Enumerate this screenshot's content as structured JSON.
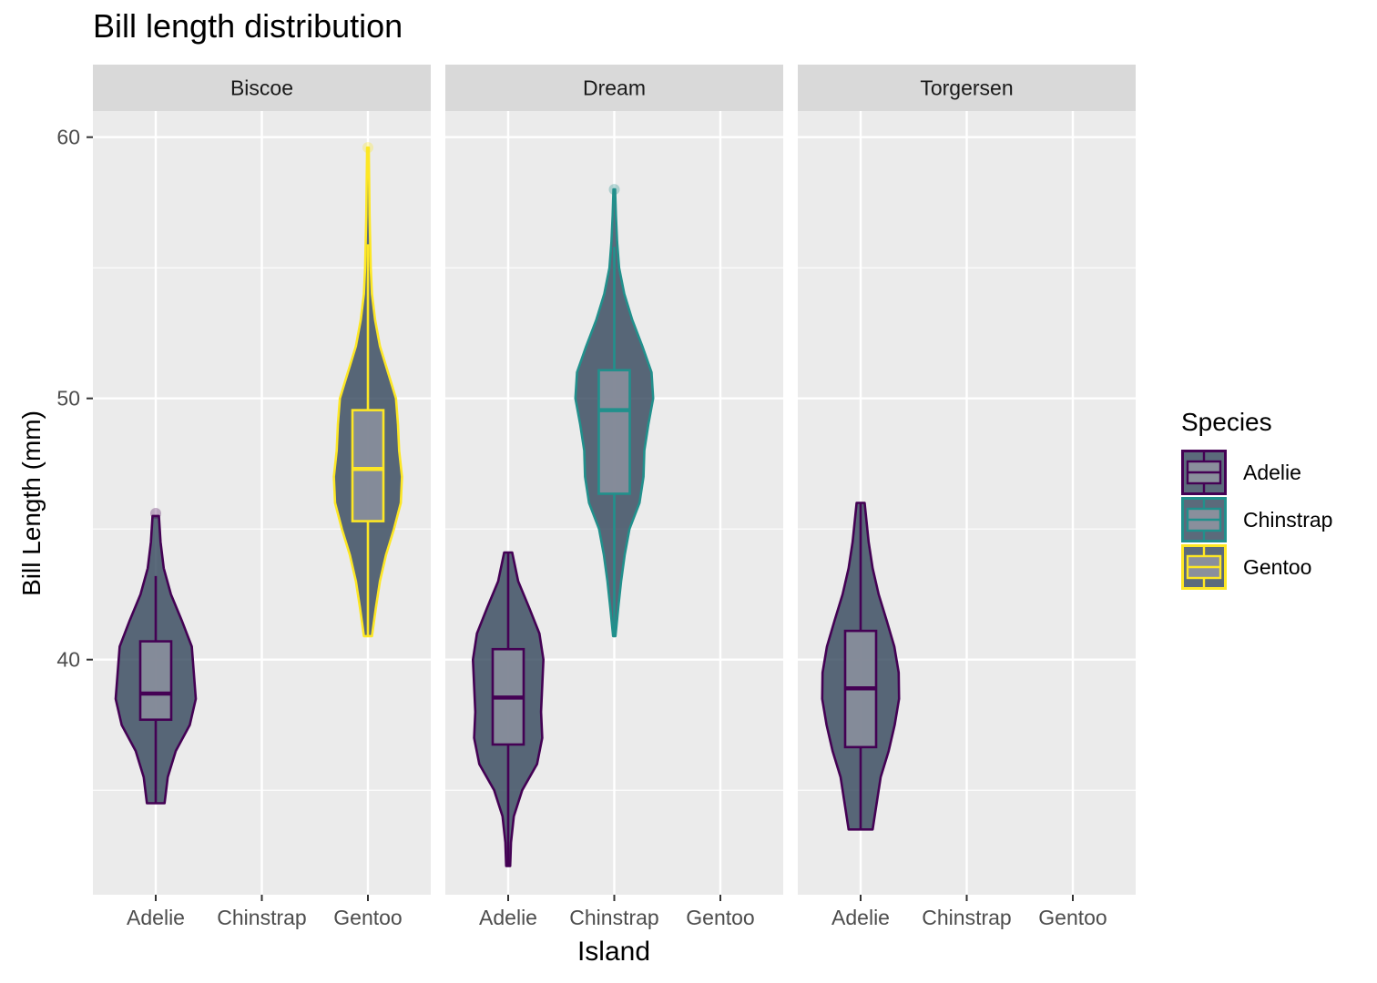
{
  "chart_data": {
    "type": "violin",
    "title": "Bill length distribution",
    "xlabel": "Island",
    "ylabel": "Bill Length (mm)",
    "ylim": [
      31,
      61
    ],
    "yticks": [
      40,
      50,
      60
    ],
    "grid": true,
    "legend_position": "right",
    "legend": {
      "title": "Species",
      "items": [
        {
          "label": "Adelie",
          "color": "#440154"
        },
        {
          "label": "Chinstrap",
          "color": "#21908C"
        },
        {
          "label": "Gentoo",
          "color": "#FDE725"
        }
      ]
    },
    "categories": [
      "Adelie",
      "Chinstrap",
      "Gentoo"
    ],
    "fill_color": "#2d4056",
    "facets": [
      {
        "label": "Biscoe",
        "groups": [
          {
            "species": "Adelie",
            "q1": 37.7,
            "median": 38.7,
            "q3": 40.7,
            "whisker_low": 34.5,
            "whisker_high": 43.2,
            "outliers": [
              45.6
            ],
            "density": [
              [
                34.5,
                0.22
              ],
              [
                35.5,
                0.3
              ],
              [
                36.5,
                0.5
              ],
              [
                37.5,
                0.85
              ],
              [
                38.5,
                1.0
              ],
              [
                39.5,
                0.95
              ],
              [
                40.5,
                0.9
              ],
              [
                41.5,
                0.65
              ],
              [
                42.5,
                0.38
              ],
              [
                43.5,
                0.2
              ],
              [
                44.5,
                0.12
              ],
              [
                45.5,
                0.08
              ]
            ]
          },
          {
            "species": "Gentoo",
            "q1": 45.3,
            "median": 47.3,
            "q3": 49.55,
            "whisker_low": 40.9,
            "whisker_high": 55.9,
            "outliers": [
              59.6
            ],
            "density": [
              [
                40.9,
                0.1
              ],
              [
                42,
                0.2
              ],
              [
                43,
                0.3
              ],
              [
                44,
                0.45
              ],
              [
                45,
                0.65
              ],
              [
                46,
                0.82
              ],
              [
                47,
                0.85
              ],
              [
                48,
                0.78
              ],
              [
                49,
                0.75
              ],
              [
                50,
                0.7
              ],
              [
                51,
                0.5
              ],
              [
                52,
                0.3
              ],
              [
                53,
                0.18
              ],
              [
                54,
                0.1
              ],
              [
                55,
                0.07
              ],
              [
                57,
                0.04
              ],
              [
                59.6,
                0.02
              ]
            ]
          }
        ]
      },
      {
        "label": "Dream",
        "groups": [
          {
            "species": "Adelie",
            "q1": 36.75,
            "median": 38.55,
            "q3": 40.4,
            "whisker_low": 32.1,
            "whisker_high": 44.1,
            "outliers": [],
            "density": [
              [
                32.1,
                0.05
              ],
              [
                33,
                0.07
              ],
              [
                34,
                0.14
              ],
              [
                35,
                0.35
              ],
              [
                36,
                0.72
              ],
              [
                37,
                0.85
              ],
              [
                38,
                0.82
              ],
              [
                39,
                0.85
              ],
              [
                40,
                0.88
              ],
              [
                41,
                0.78
              ],
              [
                42,
                0.52
              ],
              [
                43,
                0.25
              ],
              [
                44.1,
                0.1
              ]
            ]
          },
          {
            "species": "Chinstrap",
            "q1": 46.35,
            "median": 49.55,
            "q3": 51.08,
            "whisker_low": 40.9,
            "whisker_high": 55.8,
            "outliers": [
              58.0
            ],
            "density": [
              [
                40.9,
                0.03
              ],
              [
                42,
                0.1
              ],
              [
                43,
                0.17
              ],
              [
                44,
                0.26
              ],
              [
                45,
                0.38
              ],
              [
                46,
                0.63
              ],
              [
                47,
                0.73
              ],
              [
                48,
                0.75
              ],
              [
                49,
                0.85
              ],
              [
                50,
                0.97
              ],
              [
                51,
                0.93
              ],
              [
                52,
                0.7
              ],
              [
                53,
                0.45
              ],
              [
                54,
                0.25
              ],
              [
                55,
                0.12
              ],
              [
                56,
                0.07
              ],
              [
                57,
                0.04
              ],
              [
                58,
                0.02
              ]
            ]
          }
        ]
      },
      {
        "label": "Torgersen",
        "groups": [
          {
            "species": "Adelie",
            "q1": 36.65,
            "median": 38.9,
            "q3": 41.1,
            "whisker_low": 33.5,
            "whisker_high": 46.0,
            "outliers": [],
            "density": [
              [
                33.5,
                0.3
              ],
              [
                34.5,
                0.4
              ],
              [
                35.5,
                0.5
              ],
              [
                36.5,
                0.7
              ],
              [
                37.5,
                0.85
              ],
              [
                38.5,
                0.96
              ],
              [
                39.5,
                0.95
              ],
              [
                40.5,
                0.84
              ],
              [
                41.5,
                0.65
              ],
              [
                42.5,
                0.45
              ],
              [
                43.5,
                0.3
              ],
              [
                44.5,
                0.2
              ],
              [
                46,
                0.1
              ]
            ]
          }
        ]
      }
    ]
  }
}
